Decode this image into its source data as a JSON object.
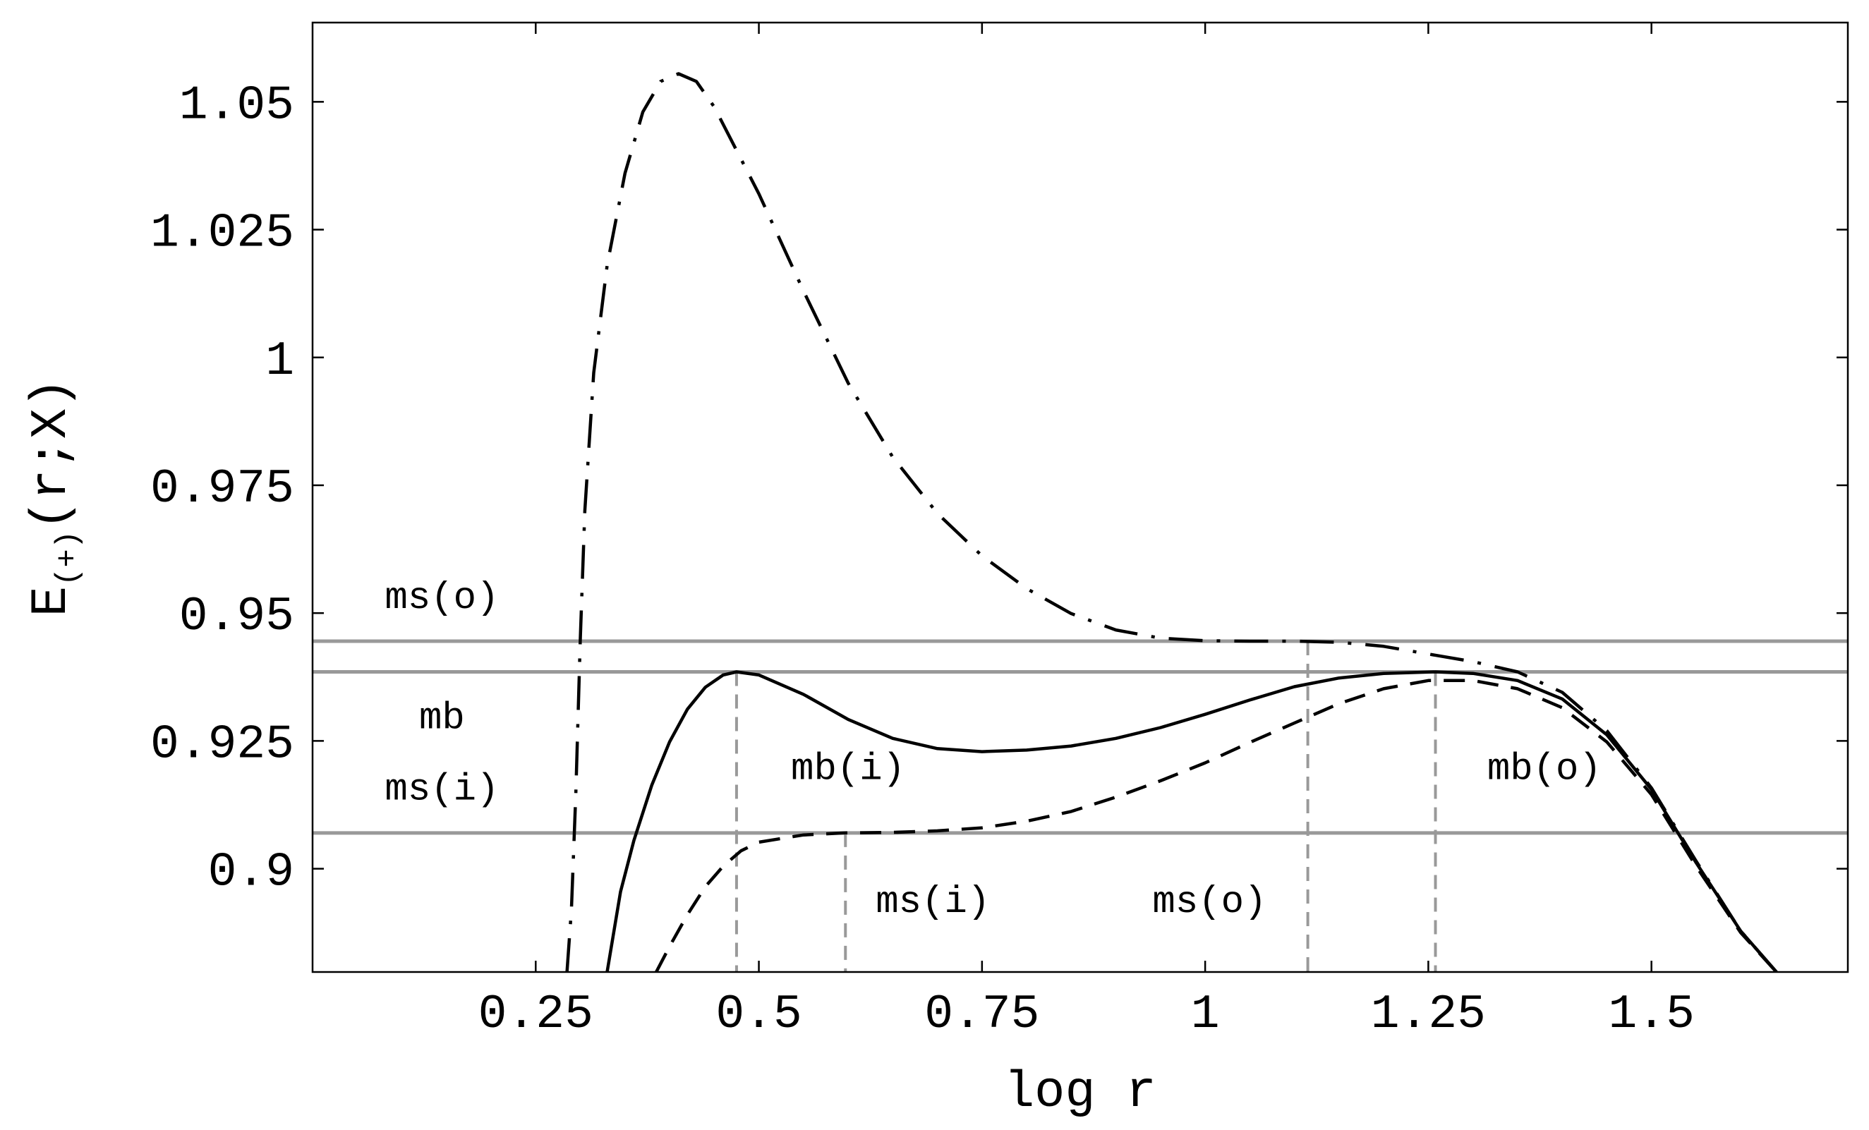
{
  "chart_data": {
    "type": "line",
    "title": "",
    "xlabel": "log r",
    "ylabel_main": "E",
    "ylabel_sub": "(+)",
    "ylabel_rest": "(r;X)",
    "xlim": [
      0,
      1.72
    ],
    "ylim": [
      0.8798,
      1.0655
    ],
    "xticks": [
      {
        "value": 0.25,
        "label": "0.25"
      },
      {
        "value": 0.5,
        "label": "0.5"
      },
      {
        "value": 0.75,
        "label": "0.75"
      },
      {
        "value": 1.0,
        "label": "1"
      },
      {
        "value": 1.25,
        "label": "1.25"
      },
      {
        "value": 1.5,
        "label": "1.5"
      }
    ],
    "yticks": [
      {
        "value": 0.9,
        "label": "0.9"
      },
      {
        "value": 0.925,
        "label": "0.925"
      },
      {
        "value": 0.95,
        "label": "0.95"
      },
      {
        "value": 0.975,
        "label": "0.975"
      },
      {
        "value": 1.0,
        "label": "1"
      },
      {
        "value": 1.025,
        "label": "1.025"
      },
      {
        "value": 1.05,
        "label": "1.05"
      }
    ],
    "hlines": [
      {
        "name": "ms(o)",
        "y": 0.9445
      },
      {
        "name": "mb",
        "y": 0.9385
      },
      {
        "name": "ms(i)",
        "y": 0.907
      }
    ],
    "vlines": [
      {
        "name": "mb(i)",
        "x": 0.475,
        "y_top": 0.9385
      },
      {
        "name": "ms(i)",
        "x": 0.597,
        "y_top": 0.907
      },
      {
        "name": "ms(o)",
        "x": 1.115,
        "y_top": 0.9445
      },
      {
        "name": "mb(o)",
        "x": 1.258,
        "y_top": 0.9385
      }
    ],
    "annotations": [
      {
        "text": "ms(o)",
        "x": 0.145,
        "y": 0.951
      },
      {
        "text": "mb",
        "x": 0.145,
        "y": 0.9275
      },
      {
        "text": "ms(i)",
        "x": 0.145,
        "y": 0.9135
      },
      {
        "text": "mb(i)",
        "x": 0.6,
        "y": 0.9175
      },
      {
        "text": "mb(o)",
        "x": 1.38,
        "y": 0.9175
      },
      {
        "text": "ms(i)",
        "x": 0.695,
        "y": 0.8915
      },
      {
        "text": "ms(o)",
        "x": 1.005,
        "y": 0.8915
      }
    ],
    "series": [
      {
        "name": "solid",
        "style": "solid",
        "points": [
          [
            0.33,
            0.8798
          ],
          [
            0.345,
            0.8955
          ],
          [
            0.36,
            0.9055
          ],
          [
            0.38,
            0.9163
          ],
          [
            0.4,
            0.9248
          ],
          [
            0.42,
            0.9312
          ],
          [
            0.44,
            0.9355
          ],
          [
            0.46,
            0.9379
          ],
          [
            0.475,
            0.9385
          ],
          [
            0.5,
            0.9379
          ],
          [
            0.55,
            0.9341
          ],
          [
            0.6,
            0.9292
          ],
          [
            0.65,
            0.9255
          ],
          [
            0.7,
            0.9235
          ],
          [
            0.75,
            0.9229
          ],
          [
            0.8,
            0.9232
          ],
          [
            0.85,
            0.924
          ],
          [
            0.9,
            0.9255
          ],
          [
            0.95,
            0.9276
          ],
          [
            1.0,
            0.9302
          ],
          [
            1.05,
            0.933
          ],
          [
            1.1,
            0.9356
          ],
          [
            1.15,
            0.9373
          ],
          [
            1.2,
            0.9382
          ],
          [
            1.258,
            0.9385
          ],
          [
            1.3,
            0.9382
          ],
          [
            1.35,
            0.9368
          ],
          [
            1.4,
            0.9332
          ],
          [
            1.45,
            0.9262
          ],
          [
            1.5,
            0.9155
          ],
          [
            1.55,
            0.9012
          ],
          [
            1.6,
            0.8878
          ],
          [
            1.64,
            0.8798
          ]
        ]
      },
      {
        "name": "dashed",
        "style": "dashed",
        "points": [
          [
            0.385,
            0.8798
          ],
          [
            0.4,
            0.8848
          ],
          [
            0.42,
            0.891
          ],
          [
            0.44,
            0.8965
          ],
          [
            0.46,
            0.9005
          ],
          [
            0.48,
            0.9035
          ],
          [
            0.5,
            0.9052
          ],
          [
            0.55,
            0.9066
          ],
          [
            0.597,
            0.907
          ],
          [
            0.65,
            0.9071
          ],
          [
            0.7,
            0.9074
          ],
          [
            0.75,
            0.908
          ],
          [
            0.8,
            0.9093
          ],
          [
            0.85,
            0.9112
          ],
          [
            0.9,
            0.914
          ],
          [
            0.95,
            0.9172
          ],
          [
            1.0,
            0.9207
          ],
          [
            1.05,
            0.9247
          ],
          [
            1.1,
            0.9285
          ],
          [
            1.15,
            0.9323
          ],
          [
            1.2,
            0.9352
          ],
          [
            1.25,
            0.9368
          ],
          [
            1.3,
            0.9368
          ],
          [
            1.35,
            0.9352
          ],
          [
            1.4,
            0.9315
          ],
          [
            1.45,
            0.9248
          ],
          [
            1.5,
            0.9145
          ],
          [
            1.55,
            0.9005
          ],
          [
            1.6,
            0.8875
          ],
          [
            1.64,
            0.8798
          ]
        ]
      },
      {
        "name": "dash-dot",
        "style": "dashdot",
        "points": [
          [
            0.285,
            0.8798
          ],
          [
            0.29,
            0.892
          ],
          [
            0.295,
            0.915
          ],
          [
            0.3,
            0.945
          ],
          [
            0.305,
            0.97
          ],
          [
            0.315,
            0.997
          ],
          [
            0.33,
            1.018
          ],
          [
            0.35,
            1.036
          ],
          [
            0.37,
            1.048
          ],
          [
            0.39,
            1.054
          ],
          [
            0.41,
            1.0555
          ],
          [
            0.43,
            1.054
          ],
          [
            0.45,
            1.049
          ],
          [
            0.5,
            1.032
          ],
          [
            0.55,
            1.013
          ],
          [
            0.6,
            0.995
          ],
          [
            0.65,
            0.9805
          ],
          [
            0.7,
            0.9695
          ],
          [
            0.75,
            0.9612
          ],
          [
            0.8,
            0.9548
          ],
          [
            0.85,
            0.9499
          ],
          [
            0.9,
            0.9467
          ],
          [
            0.95,
            0.9451
          ],
          [
            1.0,
            0.9446
          ],
          [
            1.05,
            0.9445
          ],
          [
            1.1,
            0.9445
          ],
          [
            1.15,
            0.9443
          ],
          [
            1.2,
            0.9435
          ],
          [
            1.25,
            0.942
          ],
          [
            1.3,
            0.9405
          ],
          [
            1.35,
            0.9385
          ],
          [
            1.4,
            0.9345
          ],
          [
            1.45,
            0.927
          ],
          [
            1.5,
            0.9158
          ],
          [
            1.55,
            0.9015
          ],
          [
            1.6,
            0.8878
          ],
          [
            1.64,
            0.8798
          ]
        ]
      }
    ]
  }
}
